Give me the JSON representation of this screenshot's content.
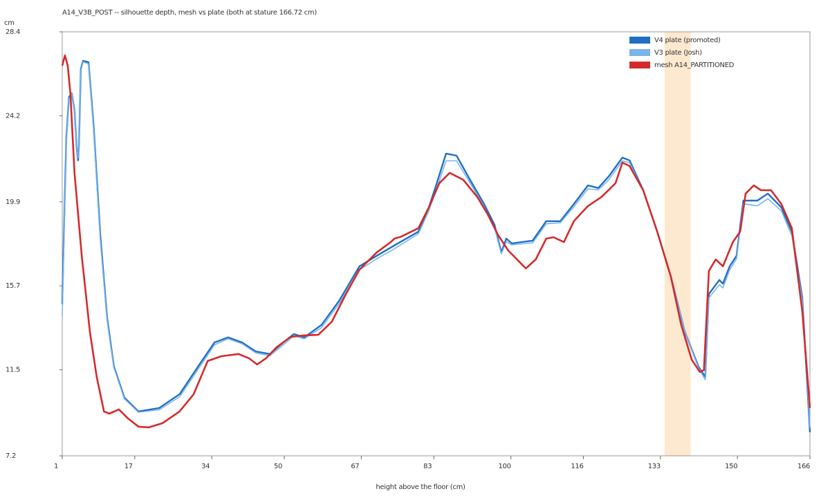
{
  "chart_data": {
    "type": "line",
    "title": "A14_V3B_POST -- silhouette depth, mesh vs plate (both at stature 166.72 cm)",
    "y_label": "cm",
    "x_label": "height above the floor (cm)",
    "xlim": [
      1,
      166
    ],
    "xticks": [
      1,
      17,
      34,
      50,
      67,
      83,
      100,
      116,
      133,
      150,
      166
    ],
    "ylim": [
      7.2,
      28.4
    ],
    "yticks": [
      7.2,
      11.5,
      15.7,
      19.9,
      24.2,
      28.4
    ],
    "highlight_band": [
      133.9,
      139.7
    ],
    "highlight_color": "#fde9cf",
    "legend": "upper right",
    "series": [
      {
        "name": "V4 plate (promoted)",
        "color": "#1f6fc5",
        "x": [
          1.0,
          1.5,
          1.9,
          2.5,
          3.1,
          3.7,
          4.2,
          4.5,
          4.7,
          5.1,
          5.6,
          6.8,
          7.9,
          9.4,
          10.9,
          12.4,
          14.7,
          17.8,
          22.4,
          26.9,
          31.5,
          34.6,
          37.6,
          40.7,
          43.7,
          46.8,
          49.8,
          52.1,
          54.4,
          58.2,
          62.1,
          66.6,
          70.4,
          74.3,
          79.6,
          81.9,
          83.4,
          85.7,
          88.0,
          91.0,
          94.1,
          96.4,
          97.9,
          99.0,
          100.2,
          104.8,
          107.8,
          110.9,
          113.9,
          117.0,
          119.3,
          121.6,
          124.6,
          126.2,
          129.2,
          132.3,
          135.3,
          138.4,
          141.4,
          142.9,
          143.7,
          146.0,
          146.8,
          148.3,
          149.8,
          151.3,
          154.4,
          156.7,
          159.7,
          162.0,
          164.3,
          166.0
        ],
        "values": [
          14.78,
          19.62,
          23.07,
          25.15,
          25.32,
          24.46,
          22.56,
          21.97,
          22.73,
          26.53,
          26.95,
          26.88,
          23.77,
          18.23,
          14.08,
          11.66,
          10.11,
          9.42,
          9.59,
          10.28,
          11.84,
          12.87,
          13.12,
          12.87,
          12.42,
          12.29,
          12.87,
          13.29,
          13.12,
          13.74,
          14.95,
          16.68,
          17.2,
          17.72,
          18.41,
          19.62,
          20.65,
          22.31,
          22.21,
          21.0,
          19.79,
          18.75,
          17.37,
          18.06,
          17.82,
          17.96,
          18.93,
          18.93,
          19.79,
          20.72,
          20.59,
          21.17,
          22.11,
          21.97,
          20.48,
          18.41,
          16.16,
          13.39,
          11.66,
          11.15,
          15.29,
          15.99,
          15.81,
          16.68,
          17.2,
          19.96,
          19.96,
          20.31,
          19.62,
          18.41,
          15.12,
          8.38
        ]
      },
      {
        "name": "V3 plate (Josh)",
        "color": "#7ab4ea",
        "x": [
          1.0,
          1.5,
          1.9,
          2.5,
          3.1,
          3.7,
          4.2,
          4.5,
          4.7,
          5.1,
          5.6,
          6.8,
          7.9,
          9.4,
          10.9,
          12.4,
          14.7,
          17.8,
          22.4,
          26.9,
          31.5,
          34.6,
          37.6,
          40.7,
          43.7,
          46.8,
          49.8,
          52.1,
          54.4,
          58.2,
          62.1,
          66.6,
          70.4,
          74.3,
          79.6,
          81.9,
          83.4,
          85.7,
          88.0,
          91.0,
          94.1,
          96.4,
          97.9,
          99.0,
          100.2,
          104.8,
          107.8,
          110.9,
          113.9,
          117.0,
          119.3,
          121.6,
          124.6,
          126.2,
          129.2,
          132.3,
          135.3,
          138.4,
          141.4,
          142.9,
          143.7,
          146.0,
          146.8,
          148.3,
          149.8,
          151.3,
          154.4,
          156.7,
          159.7,
          162.0,
          164.3,
          166.0
        ],
        "values": [
          14.2,
          19.3,
          22.9,
          25.05,
          25.3,
          24.4,
          22.6,
          22.1,
          22.6,
          26.45,
          26.9,
          26.8,
          23.6,
          18.0,
          13.95,
          11.6,
          10.05,
          9.38,
          9.5,
          10.15,
          11.7,
          12.75,
          13.05,
          12.8,
          12.35,
          12.2,
          12.75,
          13.2,
          13.05,
          13.6,
          14.8,
          16.5,
          17.05,
          17.55,
          18.3,
          19.45,
          20.4,
          21.95,
          21.95,
          20.85,
          19.65,
          18.6,
          17.3,
          17.9,
          17.75,
          17.85,
          18.8,
          18.85,
          19.65,
          20.55,
          20.5,
          21.0,
          21.95,
          21.85,
          20.45,
          18.4,
          16.16,
          13.39,
          11.6,
          11.0,
          15.1,
          15.75,
          15.6,
          16.5,
          17.05,
          19.8,
          19.7,
          20.05,
          19.45,
          18.2,
          15.0,
          8.6
        ]
      },
      {
        "name": "mesh A14_PARTITIONED",
        "color": "#d42a2a",
        "x": [
          1.0,
          1.6,
          2.2,
          2.8,
          3.7,
          5.3,
          7.1,
          8.6,
          10.2,
          11.4,
          13.5,
          15.5,
          17.8,
          20.1,
          23.1,
          26.9,
          30.0,
          33.1,
          36.1,
          39.9,
          42.2,
          44.0,
          46.0,
          48.3,
          51.4,
          54.4,
          57.5,
          60.5,
          63.6,
          66.6,
          70.4,
          73.5,
          74.3,
          75.8,
          79.6,
          81.9,
          84.2,
          86.5,
          89.5,
          92.6,
          94.9,
          97.2,
          99.4,
          103.3,
          105.5,
          107.8,
          109.4,
          111.7,
          113.9,
          117.0,
          120.0,
          123.1,
          124.6,
          126.2,
          129.2,
          132.3,
          135.3,
          137.6,
          139.9,
          141.7,
          142.6,
          143.7,
          145.2,
          146.8,
          149.0,
          150.6,
          151.8,
          153.6,
          155.2,
          157.4,
          159.7,
          162.0,
          164.3,
          166.0
        ],
        "values": [
          26.71,
          27.22,
          26.71,
          25.32,
          21.35,
          17.2,
          13.39,
          11.15,
          9.42,
          9.31,
          9.52,
          9.07,
          8.66,
          8.62,
          8.83,
          9.42,
          10.28,
          11.94,
          12.18,
          12.29,
          12.08,
          11.77,
          12.08,
          12.63,
          13.15,
          13.22,
          13.25,
          13.91,
          15.29,
          16.51,
          17.37,
          17.89,
          18.06,
          18.16,
          18.58,
          19.62,
          20.83,
          21.35,
          21.0,
          20.14,
          19.27,
          18.23,
          17.47,
          16.57,
          17.02,
          18.06,
          18.13,
          17.89,
          18.93,
          19.69,
          20.14,
          20.83,
          21.86,
          21.69,
          20.48,
          18.41,
          16.16,
          13.74,
          12.01,
          11.39,
          11.49,
          16.44,
          17.02,
          16.68,
          17.89,
          18.41,
          20.31,
          20.72,
          20.48,
          20.48,
          19.79,
          18.58,
          14.43,
          9.59
        ]
      }
    ]
  }
}
